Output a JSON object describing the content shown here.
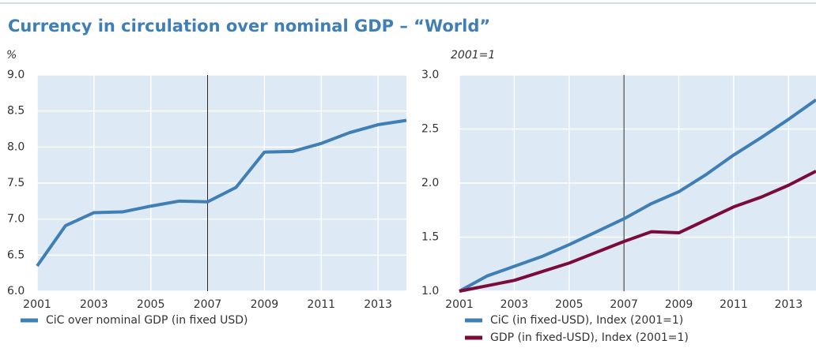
{
  "title": "Currency in circulation over nominal GDP – “World”",
  "chart_data": [
    {
      "type": "line",
      "unit": "%",
      "xlim": [
        2001,
        2014
      ],
      "xticks": [
        2001,
        2003,
        2005,
        2007,
        2009,
        2011,
        2013
      ],
      "ylim": [
        6,
        9
      ],
      "yticks": [
        {
          "value": 6,
          "label": "6.0"
        },
        {
          "value": 6.5,
          "label": "6.5"
        },
        {
          "value": 7,
          "label": "7.0"
        },
        {
          "value": 7.5,
          "label": "7.5"
        },
        {
          "value": 8,
          "label": "8.0"
        },
        {
          "value": 8.5,
          "label": "8.5"
        },
        {
          "value": 9,
          "label": "9.0"
        }
      ],
      "grid": true,
      "vline": 2007,
      "x": [
        2001,
        2002,
        2003,
        2004,
        2005,
        2006,
        2007,
        2008,
        2009,
        2010,
        2011,
        2012,
        2013,
        2014
      ],
      "series": [
        {
          "name": "CiC over nominal GDP (in fixed USD)",
          "color": "#3f7fb5",
          "values": [
            6.35,
            6.91,
            7.09,
            7.1,
            7.18,
            7.25,
            7.24,
            7.44,
            7.93,
            7.94,
            8.05,
            8.2,
            8.31,
            8.37
          ]
        }
      ]
    },
    {
      "type": "line",
      "unit": "2001=1",
      "xlim": [
        2001,
        2014
      ],
      "xticks": [
        2001,
        2003,
        2005,
        2007,
        2009,
        2011,
        2013
      ],
      "ylim": [
        1,
        3
      ],
      "yticks": [
        {
          "value": 1,
          "label": "1.0"
        },
        {
          "value": 1.5,
          "label": "1.5"
        },
        {
          "value": 2,
          "label": "2.0"
        },
        {
          "value": 2.5,
          "label": "2.5"
        },
        {
          "value": 3,
          "label": "3.0"
        }
      ],
      "grid": true,
      "vline": 2007,
      "x": [
        2001,
        2002,
        2003,
        2004,
        2005,
        2006,
        2007,
        2008,
        2009,
        2010,
        2011,
        2012,
        2013,
        2014
      ],
      "series": [
        {
          "name": "CiC (in fixed-USD), Index (2001=1)",
          "color": "#3f7fb5",
          "values": [
            1,
            1.14,
            1.23,
            1.32,
            1.43,
            1.55,
            1.67,
            1.81,
            1.92,
            2.08,
            2.26,
            2.42,
            2.59,
            2.77
          ]
        },
        {
          "name": "GDP (in fixed-USD), Index (2001=1)",
          "color": "#7a0b3a",
          "values": [
            1,
            1.05,
            1.1,
            1.18,
            1.26,
            1.36,
            1.46,
            1.55,
            1.54,
            1.66,
            1.78,
            1.87,
            1.98,
            2.11
          ]
        }
      ]
    }
  ]
}
